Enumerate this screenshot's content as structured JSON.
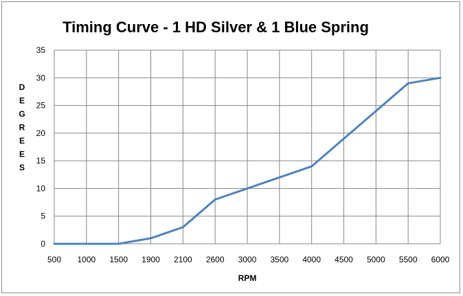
{
  "chart_data": {
    "type": "line",
    "title": "Timing Curve - 1 HD Silver & 1 Blue Spring",
    "xlabel": "RPM",
    "ylabel": "DEGREES",
    "categories": [
      "500",
      "1000",
      "1500",
      "1900",
      "2100",
      "2600",
      "3000",
      "3500",
      "4000",
      "4500",
      "5000",
      "5500",
      "6000"
    ],
    "series": [
      {
        "values": [
          0,
          0,
          0,
          1,
          3,
          8,
          10,
          12,
          14,
          19,
          24,
          29,
          30
        ]
      }
    ],
    "ylim": [
      0,
      35
    ],
    "yticks": [
      0,
      5,
      10,
      15,
      20,
      25,
      30,
      35
    ],
    "grid": true,
    "legend": "none",
    "line_color": "#4f81bd"
  }
}
